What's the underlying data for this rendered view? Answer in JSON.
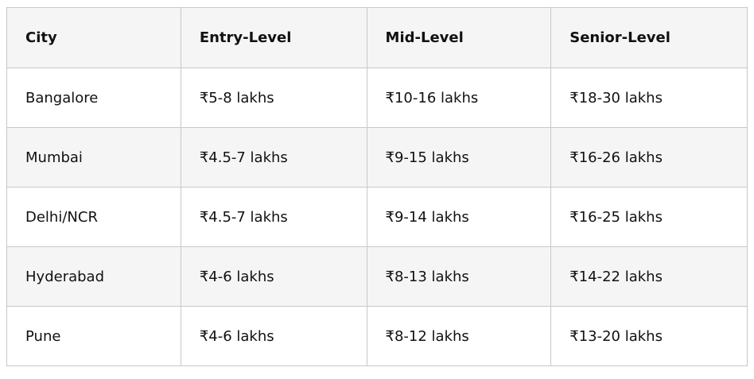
{
  "table": {
    "headers": [
      "City",
      "Entry-Level",
      "Mid-Level",
      "Senior-Level"
    ],
    "rows": [
      [
        "Bangalore",
        "₹5-8 lakhs",
        "₹10-16 lakhs",
        "₹18-30 lakhs"
      ],
      [
        "Mumbai",
        "₹4.5-7 lakhs",
        "₹9-15 lakhs",
        "₹16-26 lakhs"
      ],
      [
        "Delhi/NCR",
        "₹4.5-7 lakhs",
        "₹9-14 lakhs",
        "₹16-25 lakhs"
      ],
      [
        "Hyderabad",
        "₹4-6 lakhs",
        "₹8-13 lakhs",
        "₹14-22 lakhs"
      ],
      [
        "Pune",
        "₹4-6 lakhs",
        "₹8-12 lakhs",
        "₹13-20 lakhs"
      ]
    ]
  },
  "colors": {
    "header_bg": "#f5f5f5",
    "alt_row_bg": "#f5f5f5",
    "border": "#c8c8c8"
  }
}
